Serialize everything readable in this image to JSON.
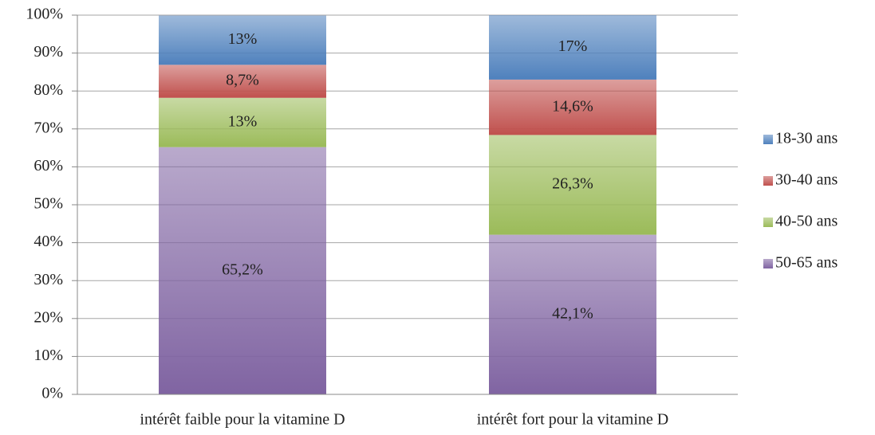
{
  "chart_data": {
    "type": "stacked_bar",
    "categories": [
      "intérêt faible pour la vitamine D",
      "intérêt fort pour la vitamine D"
    ],
    "series": [
      {
        "name": "18-30 ans",
        "color": "#4f81bd",
        "values": [
          13,
          17
        ],
        "value_labels": [
          "13%",
          "17%"
        ]
      },
      {
        "name": "30-40 ans",
        "color": "#c0504d",
        "values": [
          8.7,
          14.6
        ],
        "value_labels": [
          "8,7%",
          "14,6%"
        ]
      },
      {
        "name": "40-50 ans",
        "color": "#9bbb59",
        "values": [
          13,
          26.3
        ],
        "value_labels": [
          "13%",
          "26,3%"
        ]
      },
      {
        "name": "50-65 ans",
        "color": "#8064a2",
        "values": [
          65.2,
          42.1
        ],
        "value_labels": [
          "65,2%",
          "42,1%"
        ]
      }
    ],
    "ylim": [
      0,
      100
    ],
    "yticks": [
      {
        "value": 0,
        "label": "0%"
      },
      {
        "value": 10,
        "label": "10%"
      },
      {
        "value": 20,
        "label": "20%"
      },
      {
        "value": 30,
        "label": "30%"
      },
      {
        "value": 40,
        "label": "40%"
      },
      {
        "value": 50,
        "label": "50%"
      },
      {
        "value": 60,
        "label": "60%"
      },
      {
        "value": 70,
        "label": "70%"
      },
      {
        "value": 80,
        "label": "80%"
      },
      {
        "value": 90,
        "label": "90%"
      },
      {
        "value": 100,
        "label": "100%"
      }
    ],
    "grid": true,
    "legend": "right"
  }
}
